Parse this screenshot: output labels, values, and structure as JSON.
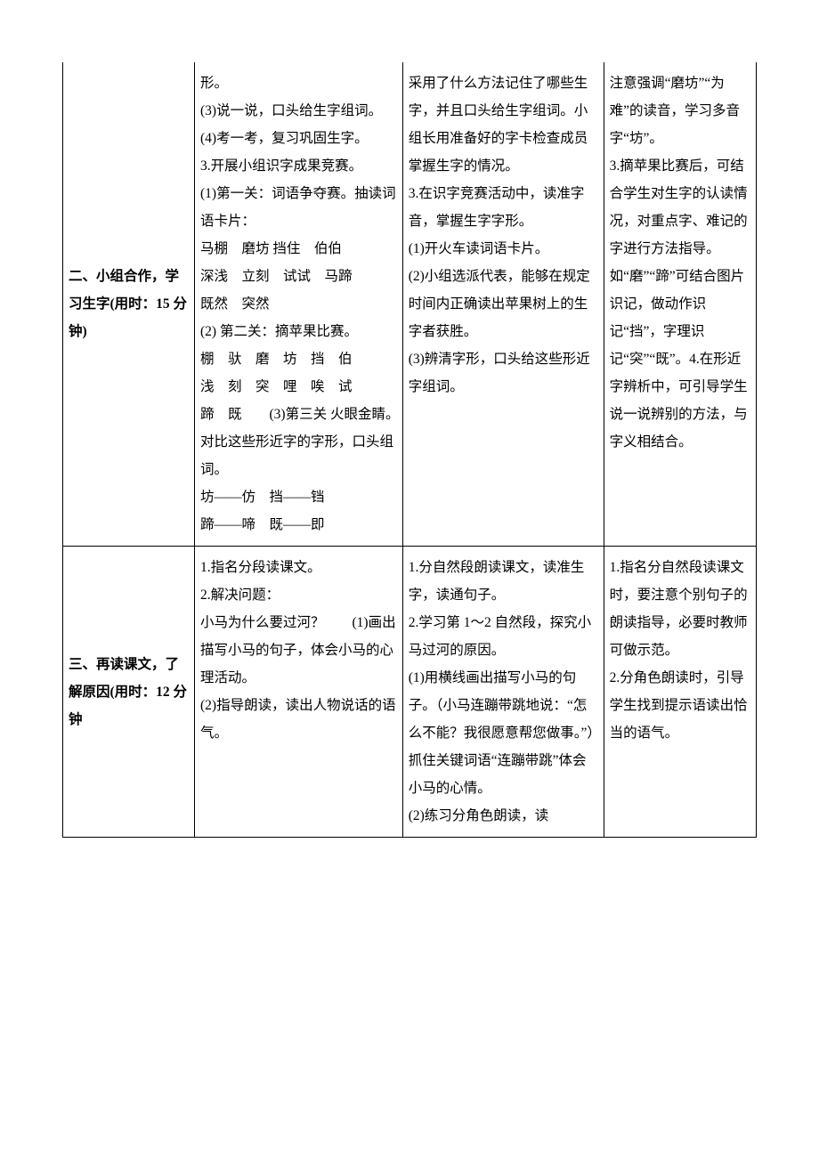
{
  "rows": [
    {
      "c1": "二、小组合作，学习生字(用时：15 分钟)",
      "c2": "形。\n(3)说一说，口头给生字组词。\n(4)考一考，复习巩固生字。\n3.开展小组识字成果竞赛。\n(1)第一关：词语争夺赛。抽读词语卡片：\n马棚　磨坊 挡住　伯伯\n深浅　立刻　试试　马蹄\n既然　突然\n(2) 第二关：摘苹果比赛。\n棚　驮　磨　坊　挡　伯\n浅　刻　突　哩　唉　试\n蹄　既　　(3)第三关 火眼金睛。　对比这些形近字的字形，口头组词。\n坊——仿　挡——铛\n蹄——啼　既——即",
      "c3": "采用了什么方法记住了哪些生字，并且口头给生字组词。小组长用准备好的字卡检查成员掌握生字的情况。\n3.在识字竞赛活动中，读准字音，掌握生字字形。\n(1)开火车读词语卡片。\n(2)小组选派代表，能够在规定时间内正确读出苹果树上的生字者获胜。\n(3)辨清字形，口头给这些形近字组词。",
      "c4": "注意强调“磨坊”“为难”的读音，学习多音字“坊”。\n3.摘苹果比赛后，可结合学生对生字的认读情况，对重点字、难记的字进行方法指导。如“磨”“蹄”可结合图片识记，做动作识记“挡”，字理识记“突”“既”。4.在形近字辨析中，可引导学生说一说辨别的方法，与字义相结合。"
    },
    {
      "c1": "三、再读课文，了解原因(用时：12 分钟",
      "c2": "1.指名分段读课文。\n2.解决问题：\n小马为什么要过河？　　(1)画出描写小马的句子，体会小马的心理活动。\n(2)指导朗读，读出人物说话的语气。",
      "c3": "1.分自然段朗读课文，读准生字，读通句子。\n2.学习第 1～2 自然段，探究小马过河的原因。\n(1)用横线画出描写小马的句子。（小马连蹦带跳地说：“怎么不能？我很愿意帮您做事。”）抓住关键词语“连蹦带跳”体会小马的心情。\n(2)练习分角色朗读，读",
      "c4": "1.指名分自然段读课文时，要注意个别句子的朗读指导，必要时教师可做示范。\n2.分角色朗读时，引导学生找到提示语读出恰当的语气。"
    }
  ],
  "style": {
    "border_color": "#000000",
    "text_color": "#000000",
    "background": "#ffffff",
    "font_family": "SimSun",
    "font_size_pt": 12,
    "line_height": 2.0,
    "col_widths_pct": [
      19,
      30,
      29,
      22
    ]
  }
}
